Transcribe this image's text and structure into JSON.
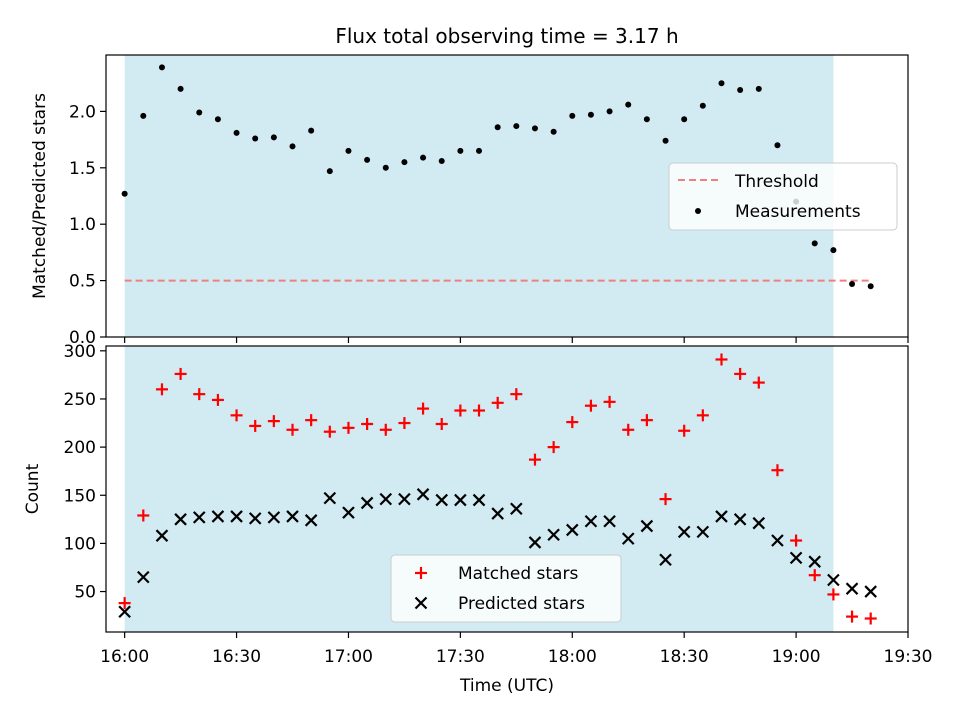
{
  "chart_data": [
    {
      "type": "scatter",
      "title": "Flux total observing time = 3.17 h",
      "xlabel": "",
      "ylabel": "Matched/Predicted stars",
      "xlim": [
        -0.08333,
        3.5
      ],
      "ylim": [
        0,
        2.5
      ],
      "yticks": [
        0.0,
        0.5,
        1.0,
        1.5,
        2.0
      ],
      "ytick_labels": [
        "0.0",
        "0.5",
        "1.0",
        "1.5",
        "2.0"
      ],
      "shaded_span": [
        0,
        3.1667
      ],
      "colors": {
        "span": "#add8e6",
        "threshold": "#f08080",
        "points": "#000000"
      },
      "threshold": {
        "label": "Threshold",
        "value": 0.5,
        "x_range": [
          0,
          3.3333
        ]
      },
      "legend": {
        "location": "center-right",
        "entries": [
          "Threshold",
          "Measurements"
        ]
      },
      "series": [
        {
          "name": "Measurements",
          "x": [
            0,
            0.0833,
            0.1667,
            0.25,
            0.3333,
            0.4167,
            0.5,
            0.5833,
            0.6667,
            0.75,
            0.8333,
            0.9167,
            1.0,
            1.0833,
            1.1667,
            1.25,
            1.3333,
            1.4167,
            1.5,
            1.5833,
            1.6667,
            1.75,
            1.8333,
            1.9167,
            2.0,
            2.0833,
            2.1667,
            2.25,
            2.3333,
            2.4167,
            2.5,
            2.5833,
            2.6667,
            2.75,
            2.8333,
            2.9167,
            3.0,
            3.0833,
            3.1667,
            3.25,
            3.3333
          ],
          "values": [
            1.27,
            1.96,
            2.39,
            2.2,
            1.99,
            1.93,
            1.81,
            1.76,
            1.77,
            1.69,
            1.83,
            1.47,
            1.65,
            1.57,
            1.5,
            1.55,
            1.59,
            1.56,
            1.65,
            1.65,
            1.86,
            1.87,
            1.85,
            1.82,
            1.96,
            1.97,
            2.0,
            2.06,
            1.93,
            1.74,
            1.93,
            2.05,
            2.25,
            2.19,
            2.2,
            1.7,
            1.2,
            0.83,
            0.77,
            0.47,
            0.45
          ]
        }
      ]
    },
    {
      "type": "scatter",
      "title": "",
      "xlabel": "Time (UTC)",
      "ylabel": "Count",
      "xlim": [
        -0.08333,
        3.5
      ],
      "ylim": [
        8,
        305
      ],
      "xticks": [
        0,
        0.5,
        1.0,
        1.5,
        2.0,
        2.5,
        3.0,
        3.5
      ],
      "xtick_labels": [
        "16:00",
        "16:30",
        "17:00",
        "17:30",
        "18:00",
        "18:30",
        "19:00",
        "19:30"
      ],
      "yticks": [
        50,
        100,
        150,
        200,
        250,
        300
      ],
      "ytick_labels": [
        "50",
        "100",
        "150",
        "200",
        "250",
        "300"
      ],
      "shaded_span": [
        0,
        3.1667
      ],
      "colors": {
        "span": "#add8e6",
        "matched": "#ff0000",
        "predicted": "#000000"
      },
      "legend": {
        "location": "lower-center",
        "entries": [
          "Matched stars",
          "Predicted stars"
        ]
      },
      "x": [
        0,
        0.0833,
        0.1667,
        0.25,
        0.3333,
        0.4167,
        0.5,
        0.5833,
        0.6667,
        0.75,
        0.8333,
        0.9167,
        1.0,
        1.0833,
        1.1667,
        1.25,
        1.3333,
        1.4167,
        1.5,
        1.5833,
        1.6667,
        1.75,
        1.8333,
        1.9167,
        2.0,
        2.0833,
        2.1667,
        2.25,
        2.3333,
        2.4167,
        2.5,
        2.5833,
        2.6667,
        2.75,
        2.8333,
        2.9167,
        3.0,
        3.0833,
        3.1667,
        3.25,
        3.3333
      ],
      "series": [
        {
          "name": "Matched stars",
          "marker": "+",
          "values": [
            38,
            129,
            260,
            276,
            255,
            249,
            233,
            222,
            227,
            218,
            228,
            216,
            220,
            224,
            218,
            225,
            240,
            224,
            238,
            238,
            246,
            255,
            187,
            200,
            226,
            243,
            247,
            218,
            228,
            146,
            217,
            233,
            291,
            276,
            267,
            176,
            103,
            67,
            47,
            24,
            22
          ]
        },
        {
          "name": "Predicted stars",
          "marker": "x",
          "values": [
            29,
            65,
            108,
            125,
            127,
            128,
            128,
            126,
            127,
            128,
            124,
            147,
            132,
            142,
            146,
            146,
            151,
            145,
            145,
            145,
            131,
            136,
            101,
            109,
            114,
            123,
            123,
            105,
            118,
            83,
            112,
            112,
            128,
            125,
            121,
            103,
            85,
            81,
            62,
            53,
            50
          ]
        }
      ]
    }
  ]
}
